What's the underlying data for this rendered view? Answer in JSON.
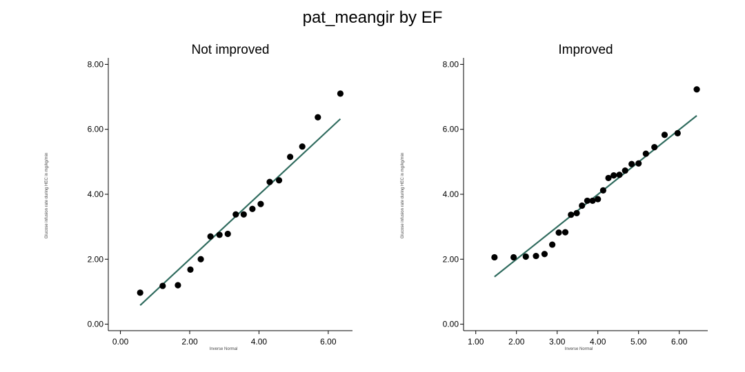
{
  "title": "pat_meangir by EF",
  "chart_data": [
    {
      "type": "scatter",
      "title": "Not improved",
      "xlabel": "Inverse Normal",
      "ylabel": "Glucose infusion rate during HEC in mg/kg/min",
      "xlim": [
        -0.35,
        6.7
      ],
      "ylim": [
        -0.2,
        8.2
      ],
      "xticks": [
        0,
        2,
        4,
        6
      ],
      "yticks": [
        0,
        2,
        4,
        6,
        8
      ],
      "tick_labels_x": [
        "0.00",
        "2.00",
        "4.00",
        "6.00"
      ],
      "tick_labels_y": [
        "0.00",
        "2.00",
        "4.00",
        "6.00",
        "8.00"
      ],
      "point_color": "#000000",
      "line_color": "#2f6b5e",
      "x": [
        0.57,
        1.22,
        1.66,
        2.02,
        2.32,
        2.6,
        2.86,
        3.1,
        3.33,
        3.56,
        3.81,
        4.05,
        4.31,
        4.58,
        4.9,
        5.25,
        5.7,
        6.35
      ],
      "y": [
        0.97,
        1.18,
        1.2,
        1.68,
        2.0,
        2.7,
        2.75,
        2.78,
        3.38,
        3.38,
        3.55,
        3.7,
        4.38,
        4.43,
        5.15,
        5.47,
        6.37,
        7.1
      ],
      "fit_line": {
        "x": [
          0.57,
          6.35
        ],
        "y": [
          0.58,
          6.32
        ]
      }
    },
    {
      "type": "scatter",
      "title": "Improved",
      "xlabel": "Inverse Normal",
      "ylabel": "Glucose infusion rate during HEC in mg/kg/min",
      "xlim": [
        0.7,
        6.7
      ],
      "ylim": [
        -0.2,
        8.2
      ],
      "xticks": [
        1,
        2,
        3,
        4,
        5,
        6
      ],
      "yticks": [
        0,
        2,
        4,
        6,
        8
      ],
      "tick_labels_x": [
        "1.00",
        "2.00",
        "3.00",
        "4.00",
        "5.00",
        "6.00"
      ],
      "tick_labels_y": [
        "0.00",
        "2.00",
        "4.00",
        "6.00",
        "8.00"
      ],
      "point_color": "#000000",
      "line_color": "#2f6b5e",
      "x": [
        1.46,
        1.93,
        2.23,
        2.48,
        2.69,
        2.88,
        3.04,
        3.2,
        3.34,
        3.48,
        3.61,
        3.74,
        3.87,
        4.0,
        4.13,
        4.26,
        4.39,
        4.53,
        4.67,
        4.83,
        5.0,
        5.18,
        5.39,
        5.64,
        5.96,
        6.43
      ],
      "y": [
        2.06,
        2.06,
        2.08,
        2.1,
        2.16,
        2.45,
        2.82,
        2.83,
        3.37,
        3.42,
        3.65,
        3.8,
        3.8,
        3.85,
        4.12,
        4.5,
        4.58,
        4.6,
        4.73,
        4.93,
        4.95,
        5.25,
        5.45,
        5.83,
        5.88,
        7.23
      ],
      "fit_line": {
        "x": [
          1.46,
          6.43
        ],
        "y": [
          1.46,
          6.42
        ]
      }
    }
  ]
}
